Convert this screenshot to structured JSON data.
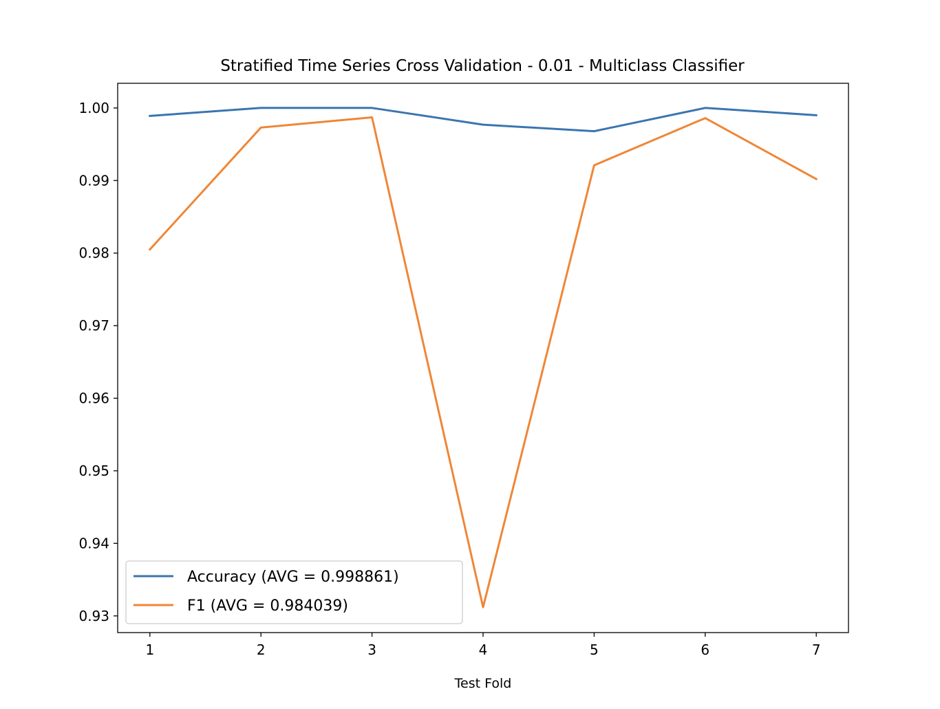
{
  "chart_data": {
    "type": "line",
    "title": "Stratified Time Series Cross Validation - 0.01 - Multiclass Classifier",
    "xlabel": "Test Fold",
    "ylabel": "",
    "x": [
      1,
      2,
      3,
      4,
      5,
      6,
      7
    ],
    "x_ticks": [
      "1",
      "2",
      "3",
      "4",
      "5",
      "6",
      "7"
    ],
    "y_ticks": [
      "0.93",
      "0.94",
      "0.95",
      "0.96",
      "0.97",
      "0.98",
      "0.99",
      "1.00"
    ],
    "xlim": [
      0.71,
      7.29
    ],
    "ylim": [
      0.9277,
      1.0034
    ],
    "grid": false,
    "legend_position": "lower-left",
    "series": [
      {
        "name": "Accuracy (AVG = 0.998861)",
        "color": "#3b75af",
        "values": [
          0.9989,
          1.0,
          1.0,
          0.9977,
          0.9968,
          1.0,
          0.999
        ]
      },
      {
        "name": "F1 (AVG = 0.984039)",
        "color": "#ef8636",
        "values": [
          0.9805,
          0.9973,
          0.9987,
          0.9312,
          0.9921,
          0.9986,
          0.9902
        ]
      }
    ]
  }
}
